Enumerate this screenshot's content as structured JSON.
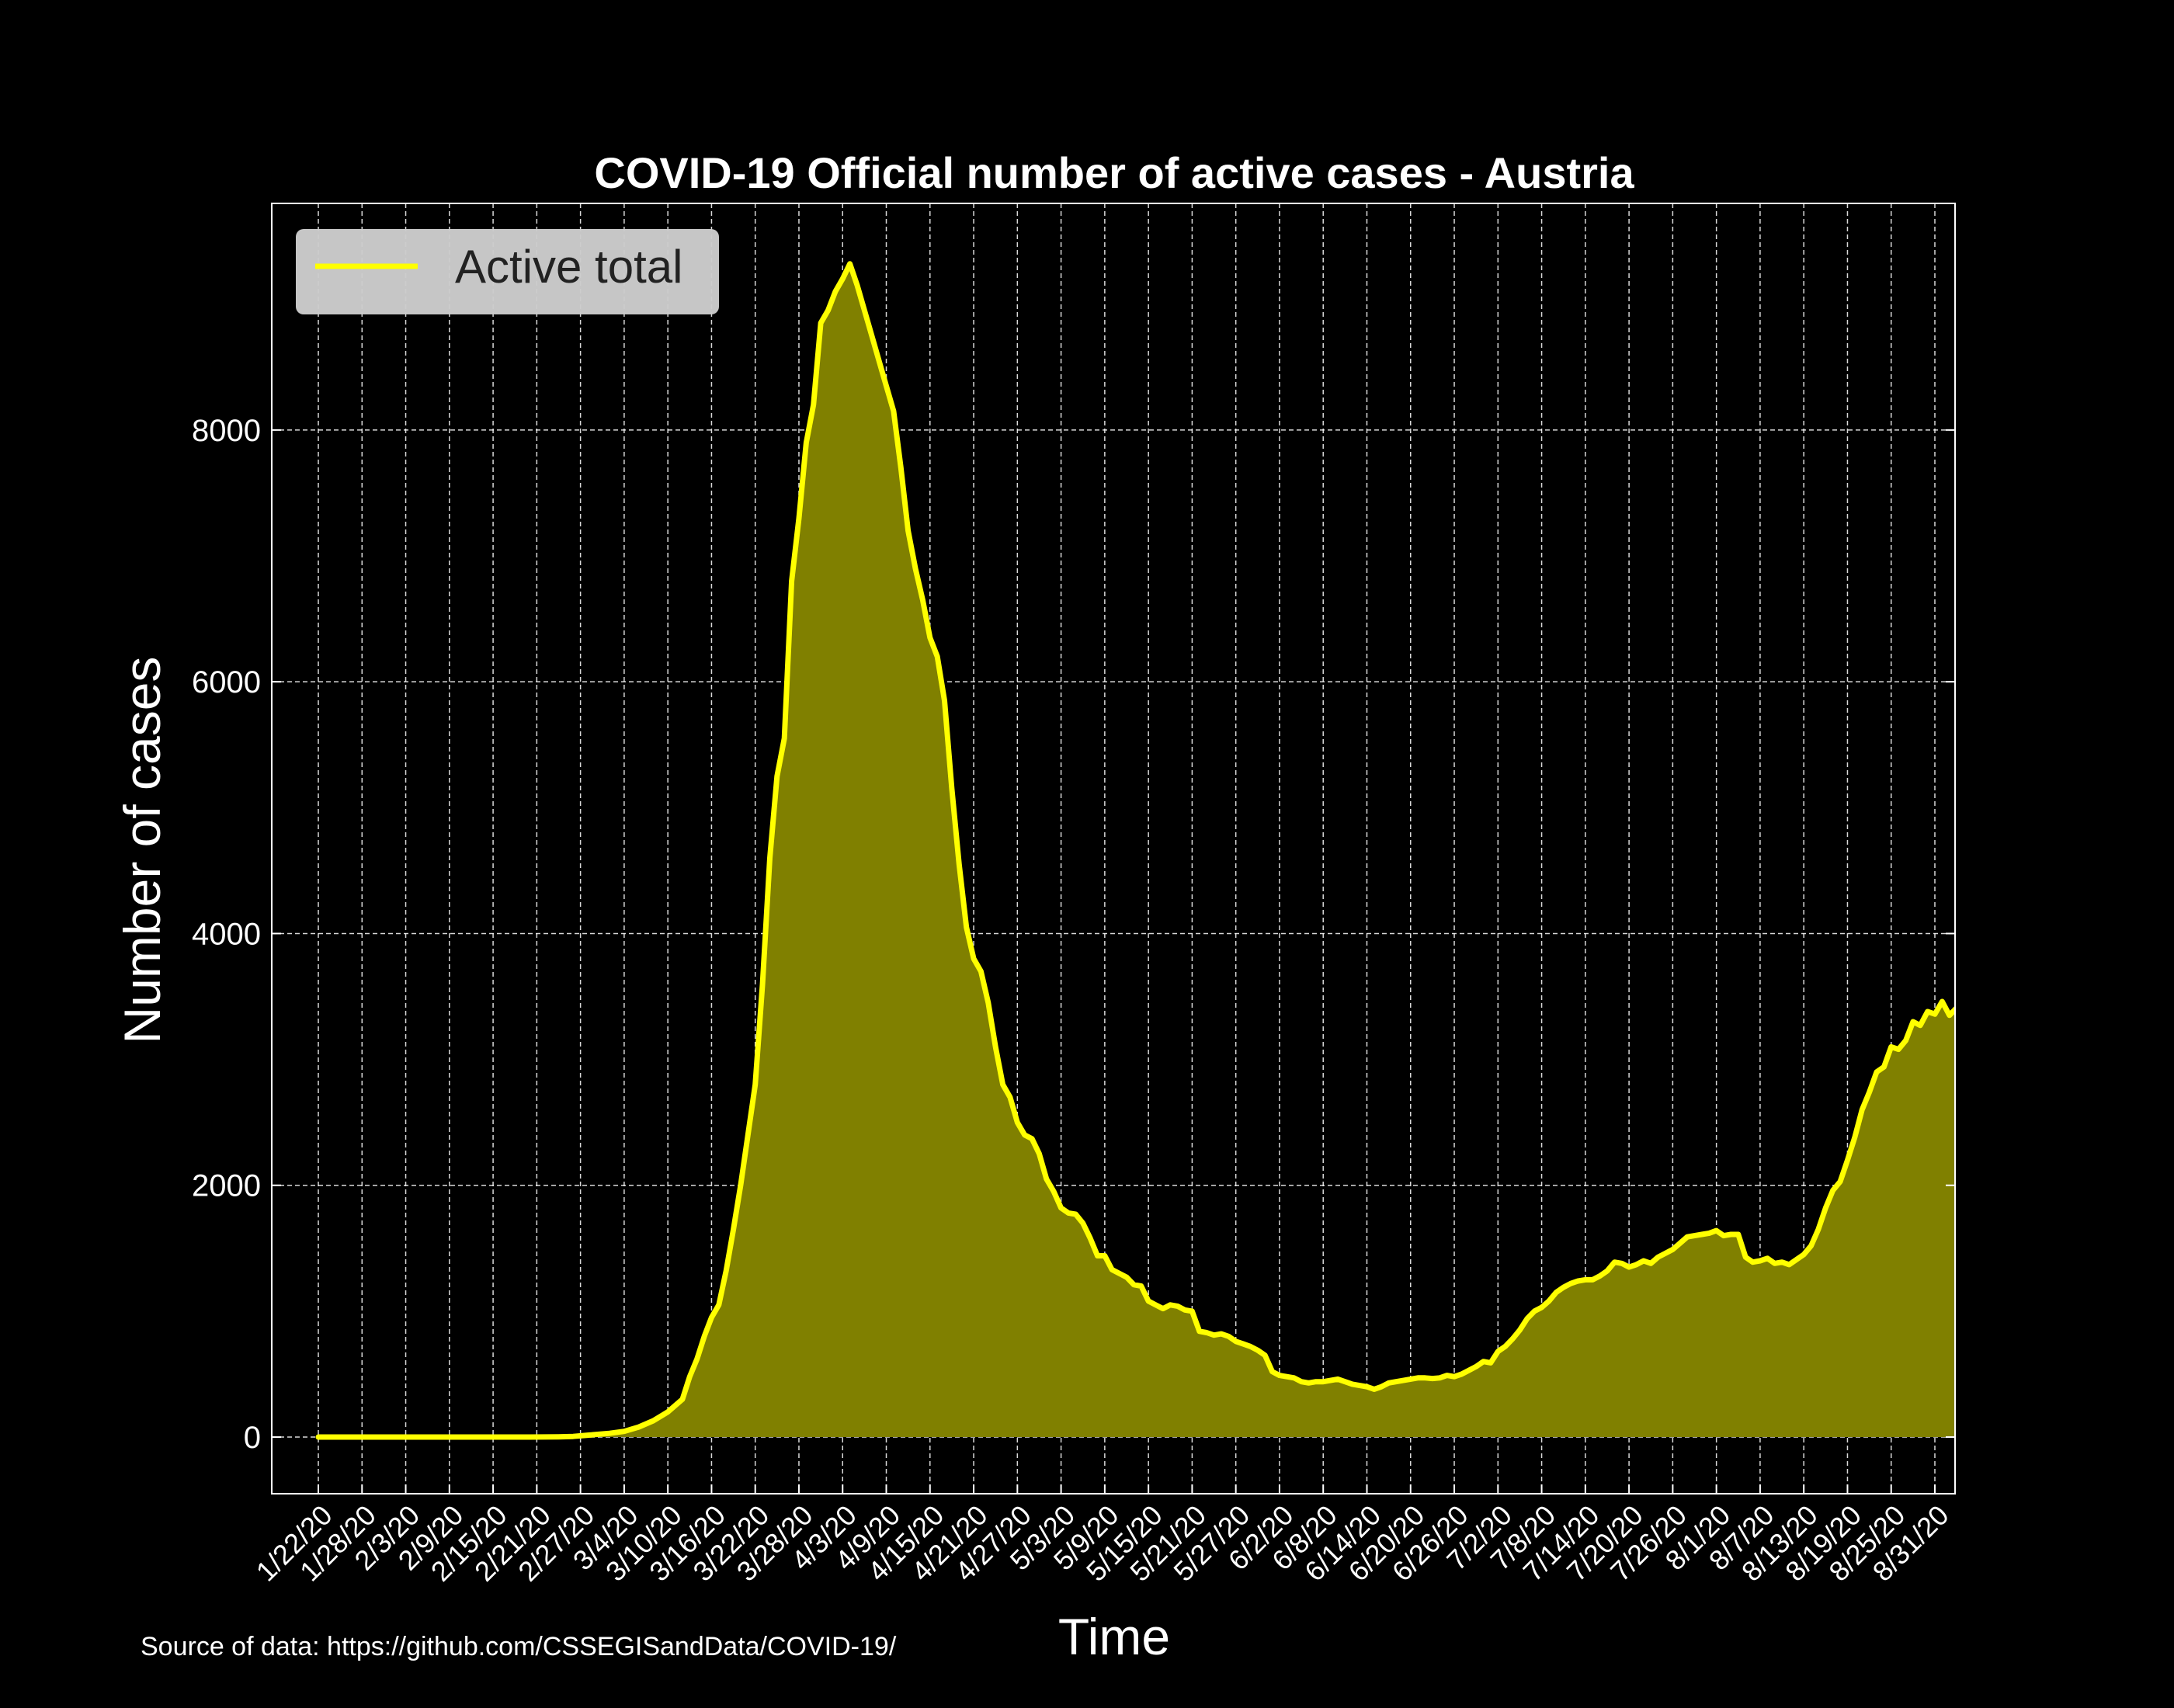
{
  "colors": {
    "background": "#000000",
    "line": "#ffff00",
    "fill": "#808000",
    "text": "#ffffff",
    "grid": "#ffffff",
    "legend_bg": "#cccccc",
    "legend_text": "#222222"
  },
  "source_note": "Source of data: https://github.com/CSSEGISandData/COVID-19/",
  "chart_data": {
    "type": "area",
    "title": "COVID-19 Official number of active cases - Austria",
    "xlabel": "Time",
    "ylabel": "Number of cases",
    "x_start": "1/22/20",
    "x_end": "8/31/20",
    "x_tick_labels": [
      "1/22/20",
      "1/28/20",
      "2/3/20",
      "2/9/20",
      "2/15/20",
      "2/21/20",
      "2/27/20",
      "3/4/20",
      "3/10/20",
      "3/16/20",
      "3/22/20",
      "3/28/20",
      "4/3/20",
      "4/9/20",
      "4/15/20",
      "4/21/20",
      "4/27/20",
      "5/3/20",
      "5/9/20",
      "5/15/20",
      "5/21/20",
      "5/27/20",
      "6/2/20",
      "6/8/20",
      "6/14/20",
      "6/20/20",
      "6/26/20",
      "7/2/20",
      "7/8/20",
      "7/14/20",
      "7/20/20",
      "7/26/20",
      "8/1/20",
      "8/7/20",
      "8/13/20",
      "8/19/20",
      "8/25/20",
      "8/31/20"
    ],
    "y_ticks": [
      0,
      2000,
      4000,
      6000,
      8000
    ],
    "ylim": [
      -450,
      9800
    ],
    "grid": true,
    "legend_position": "top-left",
    "series": [
      {
        "name": "Active total",
        "points": [
          [
            "1/22/20",
            0
          ],
          [
            "2/20/20",
            0
          ],
          [
            "2/24/20",
            2
          ],
          [
            "2/26/20",
            5
          ],
          [
            "2/28/20",
            15
          ],
          [
            "3/2/20",
            30
          ],
          [
            "3/4/20",
            45
          ],
          [
            "3/6/20",
            80
          ],
          [
            "3/8/20",
            130
          ],
          [
            "3/10/20",
            200
          ],
          [
            "3/11/20",
            250
          ],
          [
            "3/12/20",
            300
          ],
          [
            "3/13/20",
            480
          ],
          [
            "3/14/20",
            620
          ],
          [
            "3/15/20",
            800
          ],
          [
            "3/16/20",
            950
          ],
          [
            "3/17/20",
            1050
          ],
          [
            "3/18/20",
            1320
          ],
          [
            "3/19/20",
            1650
          ],
          [
            "3/20/20",
            2000
          ],
          [
            "3/21/20",
            2400
          ],
          [
            "3/22/20",
            2800
          ],
          [
            "3/23/20",
            3600
          ],
          [
            "3/24/20",
            4600
          ],
          [
            "3/25/20",
            5250
          ],
          [
            "3/26/20",
            5550
          ],
          [
            "3/27/20",
            6800
          ],
          [
            "3/28/20",
            7300
          ],
          [
            "3/29/20",
            7900
          ],
          [
            "3/30/20",
            8200
          ],
          [
            "3/31/20",
            8850
          ],
          [
            "4/1/20",
            8950
          ],
          [
            "4/2/20",
            9100
          ],
          [
            "4/3/20",
            9200
          ],
          [
            "4/4/20",
            9320
          ],
          [
            "4/5/20",
            9150
          ],
          [
            "4/6/20",
            8950
          ],
          [
            "4/7/20",
            8750
          ],
          [
            "4/8/20",
            8550
          ],
          [
            "4/9/20",
            8350
          ],
          [
            "4/10/20",
            8150
          ],
          [
            "4/11/20",
            7700
          ],
          [
            "4/12/20",
            7200
          ],
          [
            "4/13/20",
            6900
          ],
          [
            "4/14/20",
            6650
          ],
          [
            "4/15/20",
            6350
          ],
          [
            "4/16/20",
            6200
          ],
          [
            "4/17/20",
            5850
          ],
          [
            "4/18/20",
            5150
          ],
          [
            "4/19/20",
            4550
          ],
          [
            "4/20/20",
            4050
          ],
          [
            "4/21/20",
            3800
          ],
          [
            "4/22/20",
            3700
          ],
          [
            "4/23/20",
            3450
          ],
          [
            "4/24/20",
            3100
          ],
          [
            "4/25/20",
            2800
          ],
          [
            "4/26/20",
            2700
          ],
          [
            "4/27/20",
            2500
          ],
          [
            "4/28/20",
            2400
          ],
          [
            "4/29/20",
            2370
          ],
          [
            "4/30/20",
            2250
          ],
          [
            "5/1/20",
            2050
          ],
          [
            "5/2/20",
            1950
          ],
          [
            "5/3/20",
            1820
          ],
          [
            "5/4/20",
            1780
          ],
          [
            "5/5/20",
            1770
          ],
          [
            "5/6/20",
            1700
          ],
          [
            "5/7/20",
            1580
          ],
          [
            "5/8/20",
            1440
          ],
          [
            "5/9/20",
            1440
          ],
          [
            "5/10/20",
            1330
          ],
          [
            "5/11/20",
            1300
          ],
          [
            "5/12/20",
            1270
          ],
          [
            "5/13/20",
            1210
          ],
          [
            "5/14/20",
            1200
          ],
          [
            "5/15/20",
            1080
          ],
          [
            "5/16/20",
            1050
          ],
          [
            "5/17/20",
            1020
          ],
          [
            "5/18/20",
            1050
          ],
          [
            "5/19/20",
            1040
          ],
          [
            "5/20/20",
            1010
          ],
          [
            "5/21/20",
            1000
          ],
          [
            "5/22/20",
            840
          ],
          [
            "5/23/20",
            830
          ],
          [
            "5/24/20",
            810
          ],
          [
            "5/25/20",
            820
          ],
          [
            "5/26/20",
            800
          ],
          [
            "5/27/20",
            760
          ],
          [
            "5/28/20",
            740
          ],
          [
            "5/29/20",
            720
          ],
          [
            "5/30/20",
            690
          ],
          [
            "5/31/20",
            650
          ],
          [
            "6/1/20",
            520
          ],
          [
            "6/2/20",
            490
          ],
          [
            "6/3/20",
            480
          ],
          [
            "6/4/20",
            470
          ],
          [
            "6/5/20",
            440
          ],
          [
            "6/6/20",
            430
          ],
          [
            "6/7/20",
            440
          ],
          [
            "6/8/20",
            440
          ],
          [
            "6/9/20",
            450
          ],
          [
            "6/10/20",
            460
          ],
          [
            "6/11/20",
            440
          ],
          [
            "6/12/20",
            420
          ],
          [
            "6/13/20",
            410
          ],
          [
            "6/14/20",
            400
          ],
          [
            "6/15/20",
            380
          ],
          [
            "6/16/20",
            400
          ],
          [
            "6/17/20",
            430
          ],
          [
            "6/18/20",
            440
          ],
          [
            "6/19/20",
            450
          ],
          [
            "6/20/20",
            460
          ],
          [
            "6/21/20",
            470
          ],
          [
            "6/22/20",
            470
          ],
          [
            "6/23/20",
            465
          ],
          [
            "6/24/20",
            470
          ],
          [
            "6/25/20",
            490
          ],
          [
            "6/26/20",
            480
          ],
          [
            "6/27/20",
            500
          ],
          [
            "6/28/20",
            530
          ],
          [
            "6/29/20",
            560
          ],
          [
            "6/30/20",
            600
          ],
          [
            "7/1/20",
            590
          ],
          [
            "7/2/20",
            680
          ],
          [
            "7/3/20",
            720
          ],
          [
            "7/4/20",
            780
          ],
          [
            "7/5/20",
            850
          ],
          [
            "7/6/20",
            940
          ],
          [
            "7/7/20",
            1000
          ],
          [
            "7/8/20",
            1030
          ],
          [
            "7/9/20",
            1080
          ],
          [
            "7/10/20",
            1150
          ],
          [
            "7/11/20",
            1190
          ],
          [
            "7/12/20",
            1220
          ],
          [
            "7/13/20",
            1240
          ],
          [
            "7/14/20",
            1250
          ],
          [
            "7/15/20",
            1250
          ],
          [
            "7/16/20",
            1280
          ],
          [
            "7/17/20",
            1320
          ],
          [
            "7/18/20",
            1390
          ],
          [
            "7/19/20",
            1380
          ],
          [
            "7/20/20",
            1350
          ],
          [
            "7/21/20",
            1370
          ],
          [
            "7/22/20",
            1400
          ],
          [
            "7/23/20",
            1380
          ],
          [
            "7/24/20",
            1430
          ],
          [
            "7/25/20",
            1460
          ],
          [
            "7/26/20",
            1490
          ],
          [
            "7/27/20",
            1540
          ],
          [
            "7/28/20",
            1590
          ],
          [
            "7/29/20",
            1600
          ],
          [
            "7/30/20",
            1610
          ],
          [
            "7/31/20",
            1620
          ],
          [
            "8/1/20",
            1640
          ],
          [
            "8/2/20",
            1600
          ],
          [
            "8/3/20",
            1610
          ],
          [
            "8/4/20",
            1610
          ],
          [
            "8/5/20",
            1430
          ],
          [
            "8/6/20",
            1390
          ],
          [
            "8/7/20",
            1400
          ],
          [
            "8/8/20",
            1420
          ],
          [
            "8/9/20",
            1380
          ],
          [
            "8/10/20",
            1390
          ],
          [
            "8/11/20",
            1370
          ],
          [
            "8/12/20",
            1410
          ],
          [
            "8/13/20",
            1450
          ],
          [
            "8/14/20",
            1520
          ],
          [
            "8/15/20",
            1650
          ],
          [
            "8/16/20",
            1820
          ],
          [
            "8/17/20",
            1960
          ],
          [
            "8/18/20",
            2030
          ],
          [
            "8/19/20",
            2200
          ],
          [
            "8/20/20",
            2380
          ],
          [
            "8/21/20",
            2600
          ],
          [
            "8/22/20",
            2740
          ],
          [
            "8/23/20",
            2900
          ],
          [
            "8/24/20",
            2940
          ],
          [
            "8/25/20",
            3100
          ],
          [
            "8/26/20",
            3080
          ],
          [
            "8/27/20",
            3150
          ],
          [
            "8/28/20",
            3300
          ],
          [
            "8/29/20",
            3270
          ],
          [
            "8/30/20",
            3380
          ],
          [
            "8/31/20",
            3360
          ],
          [
            "9/1/20",
            3460
          ],
          [
            "9/2/20",
            3350
          ],
          [
            "9/3/20",
            3410
          ],
          [
            "9/4/20",
            3460
          ]
        ]
      }
    ]
  }
}
